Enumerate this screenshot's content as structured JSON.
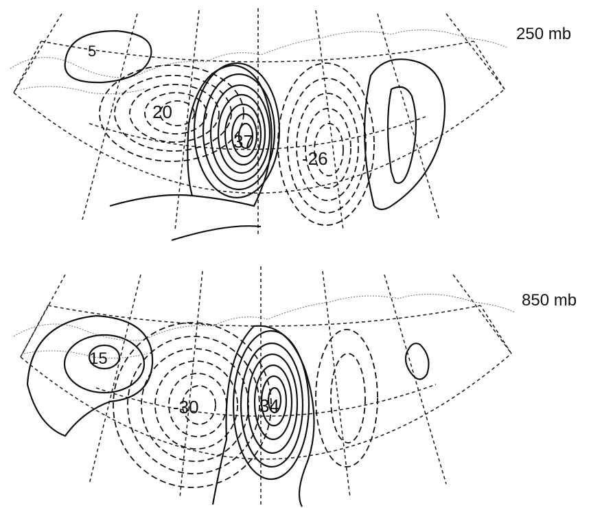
{
  "panels": [
    {
      "level_label": "250 mb",
      "values": [
        {
          "text": "20"
        },
        {
          "text": "37"
        },
        {
          "text": "-26"
        },
        {
          "text": "5"
        }
      ]
    },
    {
      "level_label": "850 mb",
      "values": [
        {
          "text": "15"
        },
        {
          "text": "-30"
        },
        {
          "text": "34"
        }
      ]
    }
  ],
  "colors": {
    "line": "#111111",
    "coast": "#777777",
    "background": "#ffffff"
  }
}
